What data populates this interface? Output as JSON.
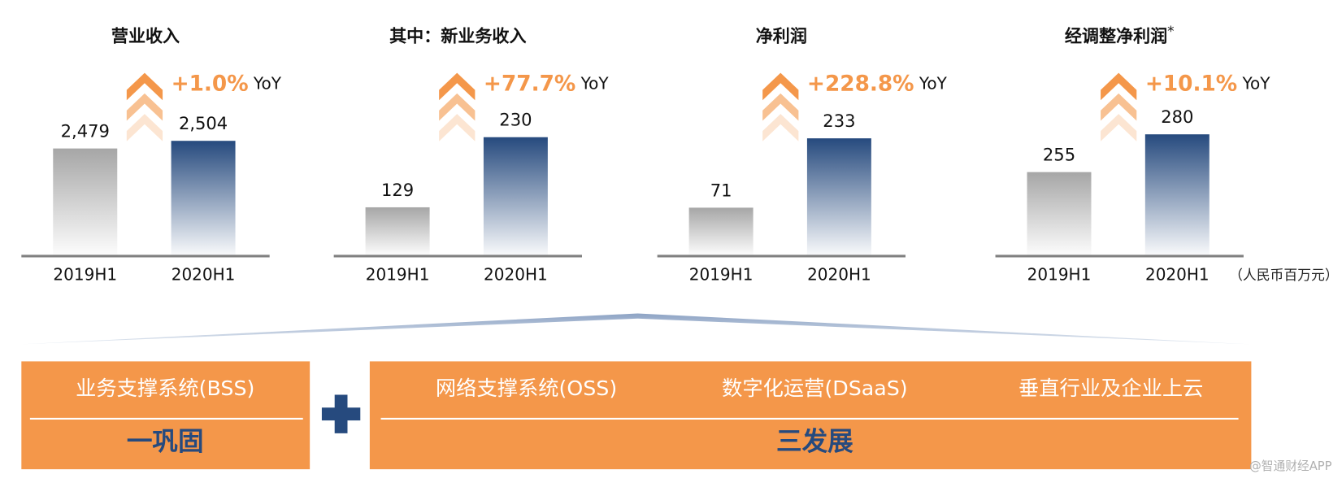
{
  "chart_data": [
    {
      "type": "bar",
      "title": "营业收入",
      "categories": [
        "2019H1",
        "2020H1"
      ],
      "values": [
        2479,
        2504
      ],
      "value_labels": [
        "2,479",
        "2,504"
      ],
      "colors": [
        "#a6a6a6",
        "#264a7e"
      ],
      "ylim": [
        2130,
        2550
      ],
      "annotation": "+1.0%",
      "annotation_suffix": "YoY"
    },
    {
      "type": "bar",
      "title": "其中：新业务收入",
      "categories": [
        "2019H1",
        "2020H1"
      ],
      "values": [
        129,
        230
      ],
      "colors": [
        "#a6a6a6",
        "#264a7e"
      ],
      "ylim": [
        60,
        245
      ],
      "annotation": "+77.7%",
      "annotation_suffix": "YoY"
    },
    {
      "type": "bar",
      "title": "净利润",
      "categories": [
        "2019H1",
        "2020H1"
      ],
      "values": [
        71,
        233
      ],
      "colors": [
        "#a6a6a6",
        "#264a7e"
      ],
      "ylim": [
        -40,
        260
      ],
      "annotation": "+228.8%",
      "annotation_suffix": "YoY"
    },
    {
      "type": "bar",
      "title": "经调整净利润",
      "title_suffix": "*",
      "categories": [
        "2019H1",
        "2020H1"
      ],
      "values": [
        255,
        280
      ],
      "colors": [
        "#a6a6a6",
        "#264a7e"
      ],
      "ylim": [
        200,
        285
      ],
      "annotation": "+10.1%",
      "annotation_suffix": "YoY"
    }
  ],
  "unit": "（人民币百万元）",
  "strategy": {
    "left": {
      "items": [
        "业务支撑系统(BSS)"
      ],
      "label": "一巩固"
    },
    "right": {
      "items": [
        "网络支撑系统(OSS)",
        "数字化运营(DSaaS)",
        "垂直行业及企业上云"
      ],
      "label": "三发展"
    }
  },
  "watermark": "@智通财经APP"
}
